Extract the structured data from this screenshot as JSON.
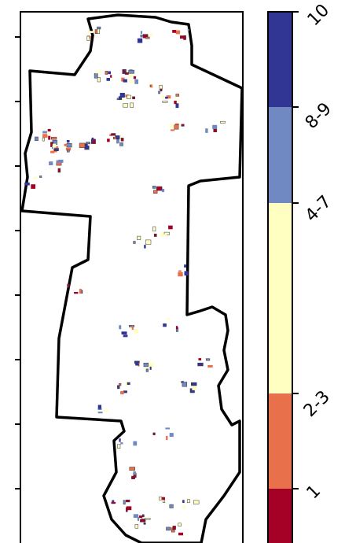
{
  "map": {
    "region": "county-outline",
    "background": "#ffffff",
    "outline_color": "#000000",
    "patch_colors": [
      "#a50026",
      "#e8704a",
      "#ffffc2",
      "#7189c2",
      "#313695"
    ]
  },
  "legend": {
    "categories": [
      {
        "label": "10",
        "color": "#313695"
      },
      {
        "label": "8-9",
        "color": "#7189c2"
      },
      {
        "label": "4-7",
        "color": "#ffffc2"
      },
      {
        "label": "2-3",
        "color": "#e8704a"
      },
      {
        "label": "1",
        "color": "#a50026"
      }
    ]
  }
}
